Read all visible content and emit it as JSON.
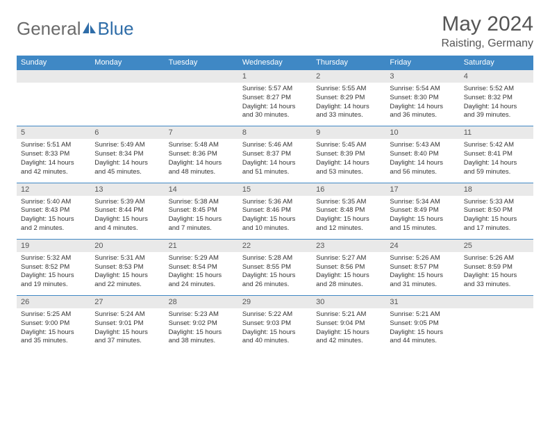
{
  "logo": {
    "text1": "General",
    "text2": "Blue"
  },
  "title": "May 2024",
  "location": "Raisting, Germany",
  "colors": {
    "header_bg": "#3f88c5",
    "header_fg": "#ffffff",
    "daynum_bg": "#e9e9e9",
    "text": "#333333",
    "title": "#555555",
    "logo_gray": "#6a6a6a",
    "logo_blue": "#2f6da8"
  },
  "day_names": [
    "Sunday",
    "Monday",
    "Tuesday",
    "Wednesday",
    "Thursday",
    "Friday",
    "Saturday"
  ],
  "weeks": [
    [
      null,
      null,
      null,
      {
        "n": "1",
        "sr": "5:57 AM",
        "ss": "8:27 PM",
        "dl": "14 hours and 30 minutes."
      },
      {
        "n": "2",
        "sr": "5:55 AM",
        "ss": "8:29 PM",
        "dl": "14 hours and 33 minutes."
      },
      {
        "n": "3",
        "sr": "5:54 AM",
        "ss": "8:30 PM",
        "dl": "14 hours and 36 minutes."
      },
      {
        "n": "4",
        "sr": "5:52 AM",
        "ss": "8:32 PM",
        "dl": "14 hours and 39 minutes."
      }
    ],
    [
      {
        "n": "5",
        "sr": "5:51 AM",
        "ss": "8:33 PM",
        "dl": "14 hours and 42 minutes."
      },
      {
        "n": "6",
        "sr": "5:49 AM",
        "ss": "8:34 PM",
        "dl": "14 hours and 45 minutes."
      },
      {
        "n": "7",
        "sr": "5:48 AM",
        "ss": "8:36 PM",
        "dl": "14 hours and 48 minutes."
      },
      {
        "n": "8",
        "sr": "5:46 AM",
        "ss": "8:37 PM",
        "dl": "14 hours and 51 minutes."
      },
      {
        "n": "9",
        "sr": "5:45 AM",
        "ss": "8:39 PM",
        "dl": "14 hours and 53 minutes."
      },
      {
        "n": "10",
        "sr": "5:43 AM",
        "ss": "8:40 PM",
        "dl": "14 hours and 56 minutes."
      },
      {
        "n": "11",
        "sr": "5:42 AM",
        "ss": "8:41 PM",
        "dl": "14 hours and 59 minutes."
      }
    ],
    [
      {
        "n": "12",
        "sr": "5:40 AM",
        "ss": "8:43 PM",
        "dl": "15 hours and 2 minutes."
      },
      {
        "n": "13",
        "sr": "5:39 AM",
        "ss": "8:44 PM",
        "dl": "15 hours and 4 minutes."
      },
      {
        "n": "14",
        "sr": "5:38 AM",
        "ss": "8:45 PM",
        "dl": "15 hours and 7 minutes."
      },
      {
        "n": "15",
        "sr": "5:36 AM",
        "ss": "8:46 PM",
        "dl": "15 hours and 10 minutes."
      },
      {
        "n": "16",
        "sr": "5:35 AM",
        "ss": "8:48 PM",
        "dl": "15 hours and 12 minutes."
      },
      {
        "n": "17",
        "sr": "5:34 AM",
        "ss": "8:49 PM",
        "dl": "15 hours and 15 minutes."
      },
      {
        "n": "18",
        "sr": "5:33 AM",
        "ss": "8:50 PM",
        "dl": "15 hours and 17 minutes."
      }
    ],
    [
      {
        "n": "19",
        "sr": "5:32 AM",
        "ss": "8:52 PM",
        "dl": "15 hours and 19 minutes."
      },
      {
        "n": "20",
        "sr": "5:31 AM",
        "ss": "8:53 PM",
        "dl": "15 hours and 22 minutes."
      },
      {
        "n": "21",
        "sr": "5:29 AM",
        "ss": "8:54 PM",
        "dl": "15 hours and 24 minutes."
      },
      {
        "n": "22",
        "sr": "5:28 AM",
        "ss": "8:55 PM",
        "dl": "15 hours and 26 minutes."
      },
      {
        "n": "23",
        "sr": "5:27 AM",
        "ss": "8:56 PM",
        "dl": "15 hours and 28 minutes."
      },
      {
        "n": "24",
        "sr": "5:26 AM",
        "ss": "8:57 PM",
        "dl": "15 hours and 31 minutes."
      },
      {
        "n": "25",
        "sr": "5:26 AM",
        "ss": "8:59 PM",
        "dl": "15 hours and 33 minutes."
      }
    ],
    [
      {
        "n": "26",
        "sr": "5:25 AM",
        "ss": "9:00 PM",
        "dl": "15 hours and 35 minutes."
      },
      {
        "n": "27",
        "sr": "5:24 AM",
        "ss": "9:01 PM",
        "dl": "15 hours and 37 minutes."
      },
      {
        "n": "28",
        "sr": "5:23 AM",
        "ss": "9:02 PM",
        "dl": "15 hours and 38 minutes."
      },
      {
        "n": "29",
        "sr": "5:22 AM",
        "ss": "9:03 PM",
        "dl": "15 hours and 40 minutes."
      },
      {
        "n": "30",
        "sr": "5:21 AM",
        "ss": "9:04 PM",
        "dl": "15 hours and 42 minutes."
      },
      {
        "n": "31",
        "sr": "5:21 AM",
        "ss": "9:05 PM",
        "dl": "15 hours and 44 minutes."
      },
      null
    ]
  ],
  "labels": {
    "sunrise": "Sunrise: ",
    "sunset": "Sunset: ",
    "daylight": "Daylight: "
  }
}
